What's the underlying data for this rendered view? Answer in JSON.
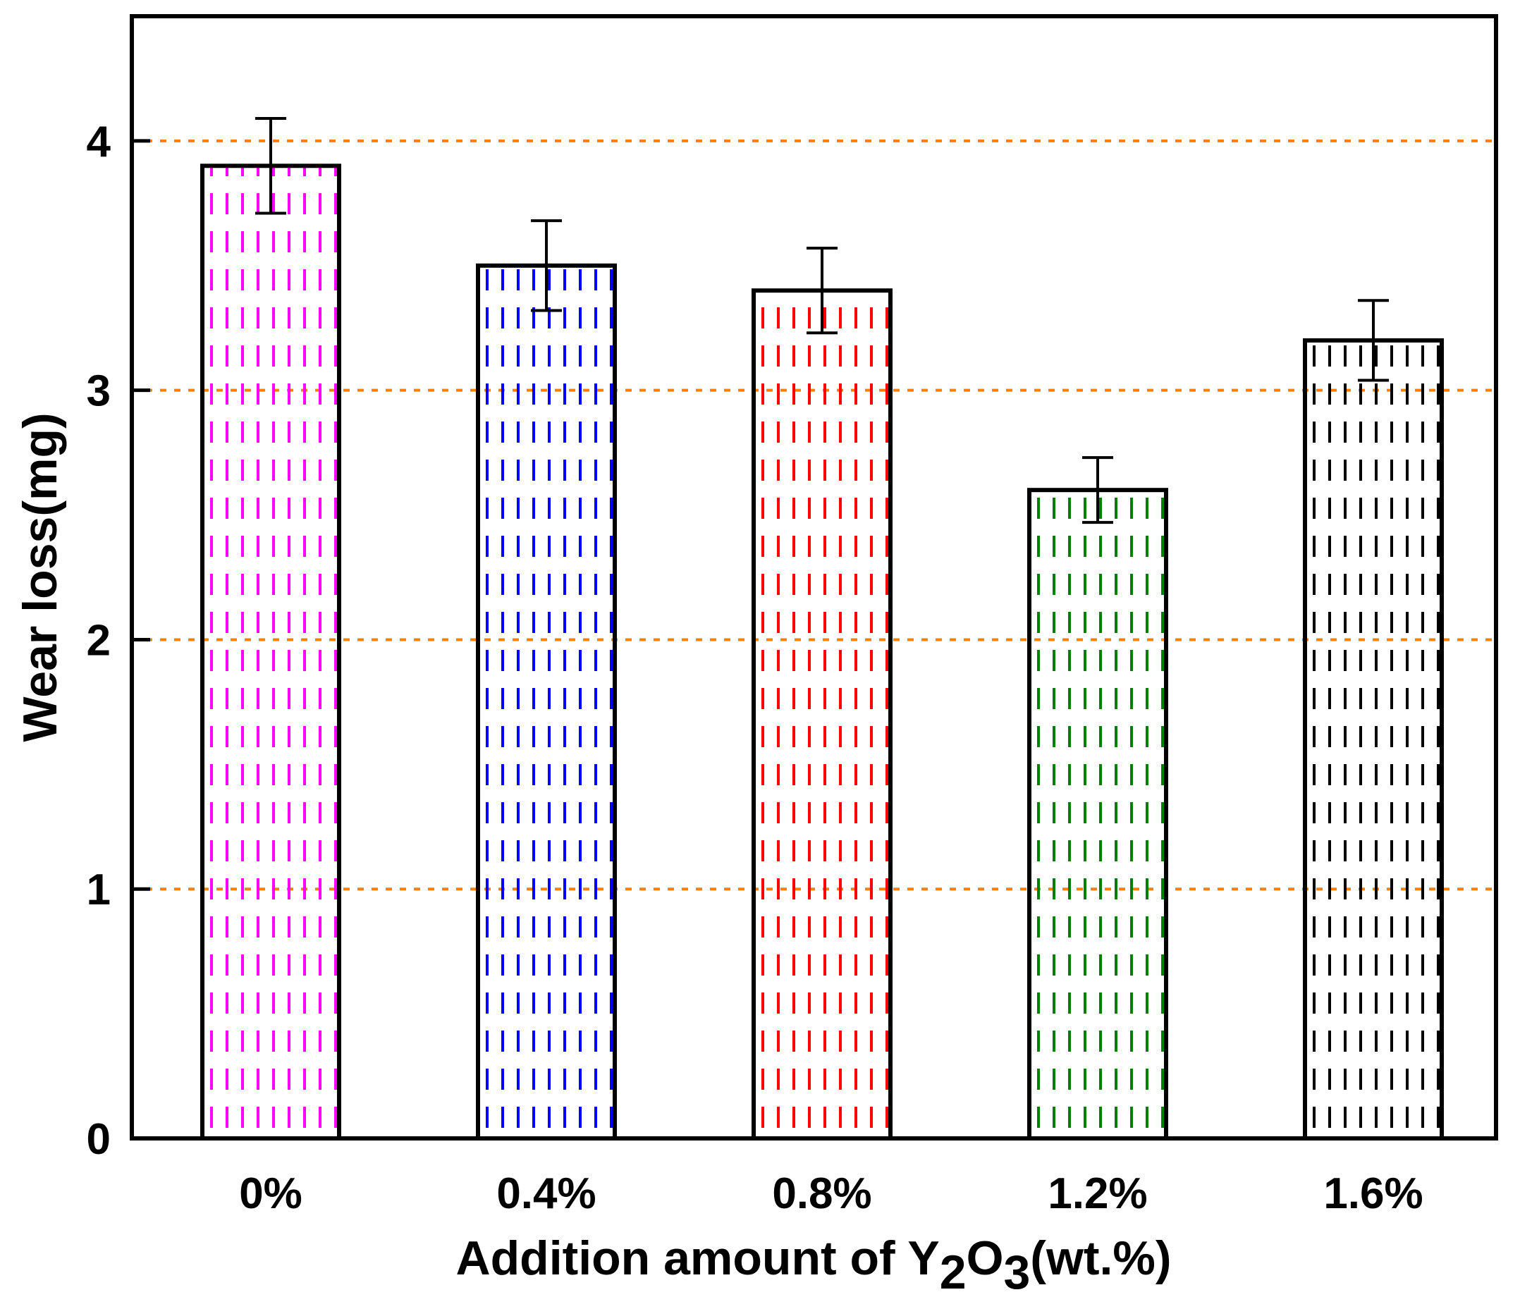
{
  "chart_data": {
    "type": "bar",
    "categories": [
      "0%",
      "0.4%",
      "0.8%",
      "1.2%",
      "1.6%"
    ],
    "values": [
      3.9,
      3.5,
      3.4,
      2.6,
      3.2
    ],
    "error": [
      0.19,
      0.18,
      0.17,
      0.13,
      0.16
    ],
    "bar_colors": [
      "#ff00ff",
      "#0000ff",
      "#ff0000",
      "#007f00",
      "#000000"
    ],
    "title": "",
    "xlabel_parts": {
      "prefix": "Addition amount of Y",
      "sub1": "2",
      "mid": "O",
      "sub2": "3",
      "suffix": "(wt.%)"
    },
    "ylabel": "Wear loss(mg)",
    "ylim": [
      0,
      4.5
    ],
    "yticks": [
      "0",
      "1",
      "2",
      "3",
      "4"
    ],
    "grid": {
      "on": true,
      "axis": "y",
      "style": "dashed",
      "color": "#ff7f00"
    },
    "legend": "none"
  }
}
